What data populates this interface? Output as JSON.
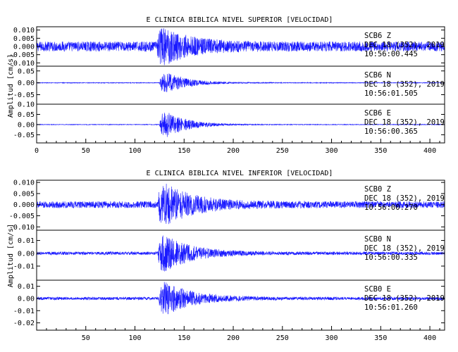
{
  "chart_data": [
    {
      "type": "line",
      "title": "E CLINICA BIBLICA NIVEL SUPERIOR [VELOCIDAD]",
      "ylabel": "Amplitud [cm/s]",
      "xlim": [
        0,
        415
      ],
      "xticks": [
        "0",
        "50",
        "100",
        "150",
        "200",
        "250",
        "300",
        "350",
        "400"
      ],
      "panels": [
        {
          "station": "SCB6",
          "component": "Z",
          "date": "DEC 18 (352), 2019",
          "time": "10:56:00.445",
          "yticks": [
            "0.010",
            "0.005",
            "0.000",
            "-0.005",
            "-0.010"
          ],
          "ylim": [
            -0.012,
            0.012
          ],
          "noise": 0.003,
          "peak": 0.012,
          "onset": 122,
          "decay": 28
        },
        {
          "station": "SCB6",
          "component": "N",
          "date": "DEC 18 (352), 2019",
          "time": "10:56:01.505",
          "yticks": [
            "0.05",
            "0.00",
            "-0.05"
          ],
          "ylim": [
            -0.09,
            0.07
          ],
          "noise": 0.0015,
          "peak": 0.06,
          "onset": 125,
          "decay": 22
        },
        {
          "station": "SCB6",
          "component": "E",
          "date": "DEC 18 (352), 2019",
          "time": "10:56:00.365",
          "yticks": [
            "0.10",
            "0.05",
            "0.00",
            "-0.05"
          ],
          "ylim": [
            -0.09,
            0.1
          ],
          "noise": 0.0015,
          "peak": 0.09,
          "onset": 125,
          "decay": 22
        }
      ]
    },
    {
      "type": "line",
      "title": "E CLINICA BIBLICA NIVEL INFERIOR [VELOCIDAD]",
      "ylabel": "Amplitud [cm/s]",
      "xlim": [
        0,
        415
      ],
      "xticks": [
        "50",
        "100",
        "150",
        "200",
        "250",
        "300",
        "350",
        "400"
      ],
      "panels": [
        {
          "station": "SCB0",
          "component": "Z",
          "date": "DEC 18 (352), 2019",
          "time": "10:56:00.270",
          "yticks": [
            "0.010",
            "0.005",
            "0.000",
            "-0.005",
            "-0.010"
          ],
          "ylim": [
            -0.0115,
            0.011
          ],
          "noise": 0.0015,
          "peak": 0.011,
          "onset": 123,
          "decay": 30
        },
        {
          "station": "SCB0",
          "component": "N",
          "date": "DEC 18 (352), 2019",
          "time": "10:56:00.335",
          "yticks": [
            "0.01",
            "0.00",
            "-0.01"
          ],
          "ylim": [
            -0.021,
            0.018
          ],
          "noise": 0.0012,
          "peak": 0.018,
          "onset": 123,
          "decay": 28
        },
        {
          "station": "SCB0",
          "component": "E",
          "date": "DEC 18 (352), 2019",
          "time": "10:56:01.260",
          "yticks": [
            "0.01",
            "0.00",
            "-0.01",
            "-0.02"
          ],
          "ylim": [
            -0.026,
            0.015
          ],
          "noise": 0.0012,
          "peak": 0.017,
          "onset": 124,
          "decay": 28
        }
      ]
    }
  ]
}
